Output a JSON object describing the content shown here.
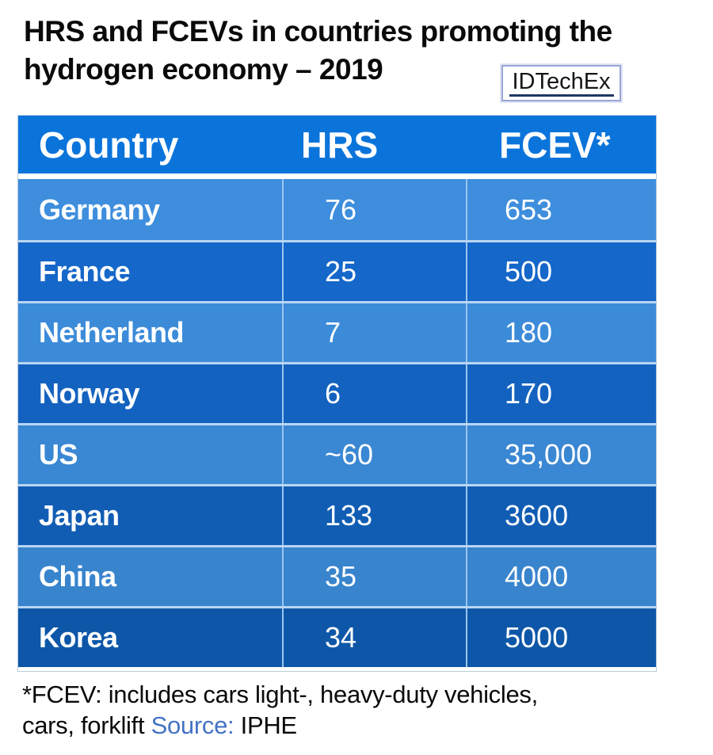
{
  "title": {
    "line1": "HRS and FCEVs in countries promoting the",
    "line2": "hydrogen economy – 2019"
  },
  "logo": {
    "text": "IDTechEx"
  },
  "table": {
    "headers": [
      "Country",
      "HRS",
      "FCEV*"
    ],
    "rows": [
      {
        "country": "Germany",
        "hrs": "76",
        "fcev": "653",
        "bg": "#3E8EDD"
      },
      {
        "country": "France",
        "hrs": "25",
        "fcev": "500",
        "bg": "#1567C9"
      },
      {
        "country": "Netherland",
        "hrs": "7",
        "fcev": "180",
        "bg": "#3C8BD9"
      },
      {
        "country": "Norway",
        "hrs": "6",
        "fcev": "170",
        "bg": "#1362BF"
      },
      {
        "country": "US",
        "hrs": "~60",
        "fcev": "35,000",
        "bg": "#3A87D3"
      },
      {
        "country": "Japan",
        "hrs": "133",
        "fcev": "3600",
        "bg": "#115DB4"
      },
      {
        "country": "China",
        "hrs": "35",
        "fcev": "4000",
        "bg": "#3884CD"
      },
      {
        "country": "Korea",
        "hrs": "34",
        "fcev": "5000",
        "bg": "#0E57A8"
      }
    ]
  },
  "footnote": {
    "line1": "*FCEV: includes cars light-, heavy-duty vehicles,",
    "line2_part1": "cars, forklift ",
    "source_label": "Source:",
    "line2_part2": " IPHE"
  },
  "colors": {
    "header_bg": "#0B74DB",
    "divider": "#9CC5EF",
    "separator": "#B9D6F3",
    "table_border": "#BDCADF",
    "source_blue": "#4472C4",
    "logo_border": "#9AA5D6",
    "logo_underline": "#1F3864"
  },
  "chart_data": {
    "type": "table",
    "title": "HRS and FCEVs in countries promoting the hydrogen economy – 2019",
    "columns": [
      "Country",
      "HRS",
      "FCEV*"
    ],
    "rows": [
      [
        "Germany",
        "76",
        "653"
      ],
      [
        "France",
        "25",
        "500"
      ],
      [
        "Netherland",
        "7",
        "180"
      ],
      [
        "Norway",
        "6",
        "170"
      ],
      [
        "US",
        "~60",
        "35,000"
      ],
      [
        "Japan",
        "133",
        "3600"
      ],
      [
        "China",
        "35",
        "4000"
      ],
      [
        "Korea",
        "34",
        "5000"
      ]
    ],
    "footnote": "*FCEV: includes cars light-, heavy-duty vehicles, cars, forklift",
    "source": "IPHE",
    "branding": "IDTechEx"
  }
}
